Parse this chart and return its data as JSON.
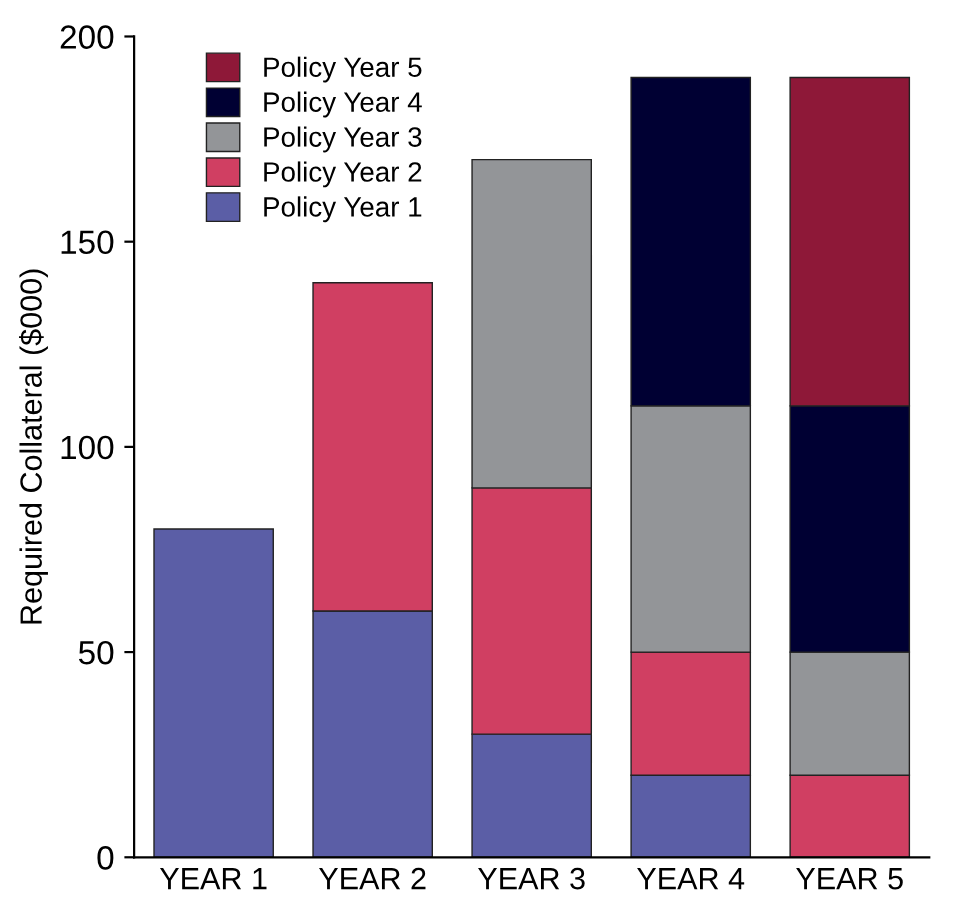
{
  "chart_data": {
    "type": "bar",
    "stacked": true,
    "ylabel": "Required Collateral ($000)",
    "categories": [
      "YEAR 1",
      "YEAR 2",
      "YEAR 3",
      "YEAR 4",
      "YEAR 5"
    ],
    "series": [
      {
        "name": "Policy Year 1",
        "color": "#5b5ea6",
        "values": [
          80,
          60,
          30,
          20,
          null
        ]
      },
      {
        "name": "Policy Year 2",
        "color": "#d03f62",
        "values": [
          null,
          80,
          60,
          30,
          20
        ]
      },
      {
        "name": "Policy Year 3",
        "color": "#939598",
        "values": [
          null,
          null,
          80,
          60,
          30
        ]
      },
      {
        "name": "Policy Year 4",
        "color": "#000033",
        "values": [
          null,
          null,
          null,
          80,
          60
        ]
      },
      {
        "name": "Policy Year 5",
        "color": "#8e1838",
        "values": [
          null,
          null,
          null,
          null,
          80
        ]
      }
    ],
    "ylim": [
      0,
      200
    ],
    "yticks": [
      0,
      50,
      100,
      150,
      200
    ],
    "grid": false,
    "legend": "top left"
  }
}
